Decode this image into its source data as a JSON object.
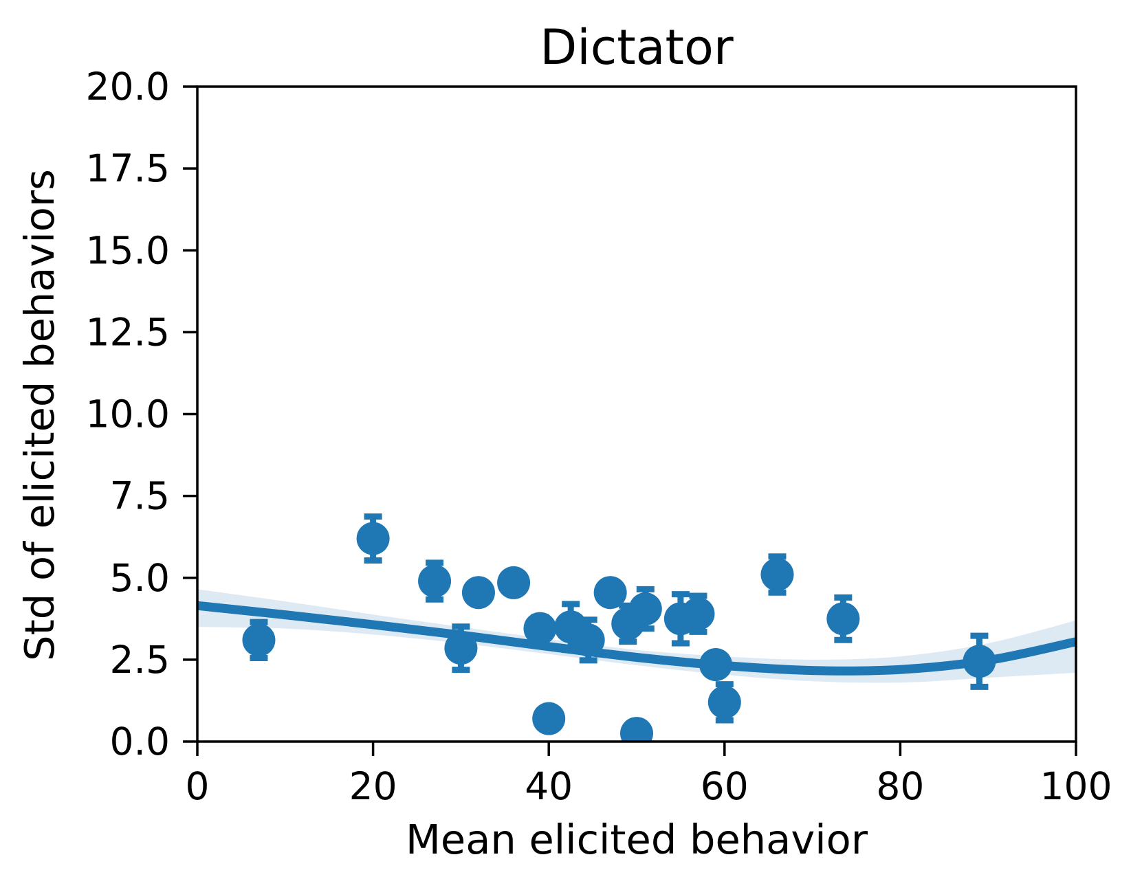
{
  "title": "Dictator",
  "chart_data": {
    "type": "scatter",
    "title": "Dictator",
    "xlabel": "Mean elicited behavior",
    "ylabel": "Std of elicited behaviors",
    "xlim": [
      0,
      100
    ],
    "ylim": [
      0,
      20
    ],
    "x_ticks": [
      0,
      20,
      40,
      60,
      80,
      100
    ],
    "x_tick_labels": [
      "0",
      "20",
      "40",
      "60",
      "80",
      "100"
    ],
    "y_ticks": [
      0,
      2.5,
      5,
      7.5,
      10,
      12.5,
      15,
      17.5,
      20
    ],
    "y_tick_labels": [
      "0.0",
      "2.5",
      "5.0",
      "7.5",
      "10.0",
      "12.5",
      "15.0",
      "17.5",
      "20.0"
    ],
    "grid": false,
    "legend": false,
    "series": [
      {
        "name": "elicited-behavior-points",
        "type": "scatter_with_errorbars",
        "points": [
          {
            "x": 7,
            "y": 3.1,
            "yerr": 0.55
          },
          {
            "x": 20,
            "y": 6.2,
            "yerr": 0.67
          },
          {
            "x": 27,
            "y": 4.9,
            "yerr": 0.56
          },
          {
            "x": 30,
            "y": 2.85,
            "yerr": 0.66
          },
          {
            "x": 32,
            "y": 4.55,
            "yerr": 0.3
          },
          {
            "x": 36,
            "y": 4.85,
            "yerr": 0.3
          },
          {
            "x": 39,
            "y": 3.45,
            "yerr": 0.35
          },
          {
            "x": 40,
            "y": 0.7,
            "yerr": 0.2
          },
          {
            "x": 42.5,
            "y": 3.5,
            "yerr": 0.7
          },
          {
            "x": 44.5,
            "y": 3.1,
            "yerr": 0.62
          },
          {
            "x": 47,
            "y": 4.55,
            "yerr": 0.3
          },
          {
            "x": 49,
            "y": 3.6,
            "yerr": 0.55
          },
          {
            "x": 50,
            "y": 0.25,
            "yerr": 0.15
          },
          {
            "x": 51,
            "y": 4.05,
            "yerr": 0.6
          },
          {
            "x": 55,
            "y": 3.75,
            "yerr": 0.75
          },
          {
            "x": 57,
            "y": 3.9,
            "yerr": 0.55
          },
          {
            "x": 59,
            "y": 2.35,
            "yerr": 0.3
          },
          {
            "x": 60,
            "y": 1.2,
            "yerr": 0.55
          },
          {
            "x": 66,
            "y": 5.1,
            "yerr": 0.55
          },
          {
            "x": 73.5,
            "y": 3.75,
            "yerr": 0.65
          },
          {
            "x": 89,
            "y": 2.45,
            "yerr": 0.78
          }
        ]
      },
      {
        "name": "polynomial-regression-line",
        "type": "line",
        "x": [
          0,
          10,
          20,
          30,
          40,
          50,
          60,
          70,
          80,
          90,
          100
        ],
        "y": [
          4.15,
          3.87,
          3.57,
          3.25,
          2.9,
          2.57,
          2.32,
          2.17,
          2.2,
          2.48,
          3.05
        ]
      },
      {
        "name": "confidence-band",
        "type": "band",
        "x": [
          0,
          10,
          20,
          30,
          40,
          50,
          60,
          70,
          80,
          90,
          100
        ],
        "y_top": [
          4.65,
          4.28,
          3.88,
          3.5,
          3.13,
          2.8,
          2.6,
          2.5,
          2.6,
          3.0,
          3.7
        ],
        "y_bottom": [
          3.5,
          3.45,
          3.27,
          3.0,
          2.67,
          2.33,
          2.04,
          1.84,
          1.8,
          1.95,
          2.1
        ]
      }
    ],
    "colors": {
      "marker": "#1f77b4",
      "line": "#1f77b4",
      "band": "#ddeaf4",
      "axis": "#000000",
      "background": "#ffffff"
    }
  }
}
